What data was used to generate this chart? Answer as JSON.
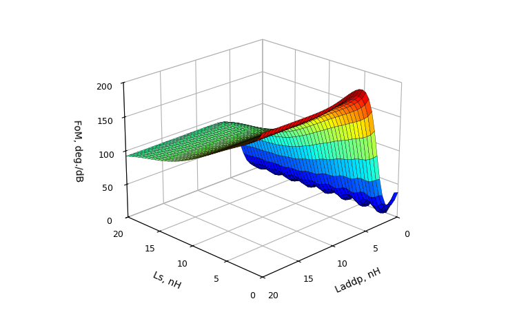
{
  "xlabel": "Laddp, nH",
  "ylabel": "Ls, nH",
  "zlabel": "FoM, deg./dB",
  "x_ticks": [
    0,
    5,
    10,
    15,
    20
  ],
  "y_ticks": [
    0,
    5,
    10,
    15,
    20
  ],
  "z_ticks": [
    0,
    50,
    100,
    150,
    200
  ],
  "n_points": 41,
  "colormap": "jet",
  "elev": 22,
  "azim": -135,
  "background_color": "#ffffff",
  "La_thresh": 3.5,
  "FoM_max": 200,
  "FoM_plateau_large_Ls": 88,
  "peak_La": 6.0,
  "peak_Ls": 1.0
}
